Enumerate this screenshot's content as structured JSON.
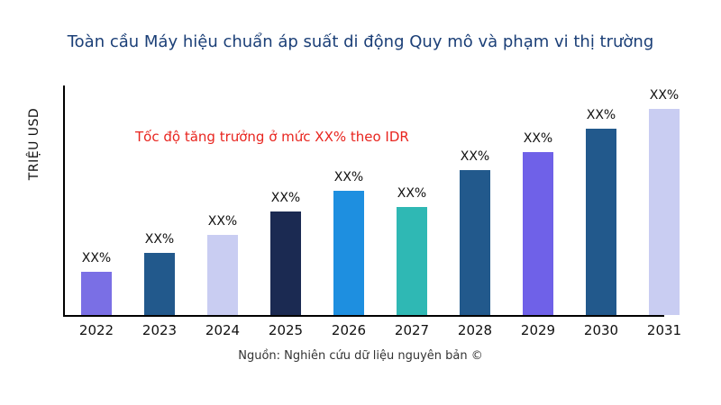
{
  "header": {
    "title": "Toàn cầu Máy hiệu chuẩn áp suất di động Quy mô và phạm vi thị trường"
  },
  "annotation": {
    "text": "Tốc độ tăng trưởng ở mức XX% theo IDR",
    "color": "#e8251f"
  },
  "y_axis": {
    "label": "TRIỆU USD"
  },
  "footer": {
    "source": "Nguồn: Nghiên cứu dữ liệu nguyên bản ©"
  },
  "colors": {
    "title": "#1b3f77",
    "axis": "#000000",
    "background": "#ffffff"
  },
  "chart_data": {
    "type": "bar",
    "title": "Toàn cầu Máy hiệu chuẩn áp suất di động Quy mô và phạm vi thị trường",
    "xlabel": "",
    "ylabel": "TRIỆU USD",
    "categories": [
      "2022",
      "2023",
      "2024",
      "2025",
      "2026",
      "2027",
      "2028",
      "2029",
      "2030",
      "2031"
    ],
    "values": [
      19,
      27,
      35,
      45,
      54,
      47,
      63,
      71,
      81,
      90
    ],
    "bar_labels": [
      "XX%",
      "XX%",
      "XX%",
      "XX%",
      "XX%",
      "XX%",
      "XX%",
      "XX%",
      "XX%",
      "XX%"
    ],
    "bar_colors": [
      "#7a6fe5",
      "#22598c",
      "#c9cdf2",
      "#1b2a52",
      "#1e8fe0",
      "#2fb8b4",
      "#22598c",
      "#6f61e8",
      "#22598c",
      "#c9cdf2"
    ],
    "ylim": [
      0,
      100
    ],
    "grid": false,
    "legend": false,
    "annotation": "Tốc độ tăng trưởng ở mức XX% theo IDR",
    "source": "Nguồn: Nghiên cứu dữ liệu nguyên bản ©"
  }
}
